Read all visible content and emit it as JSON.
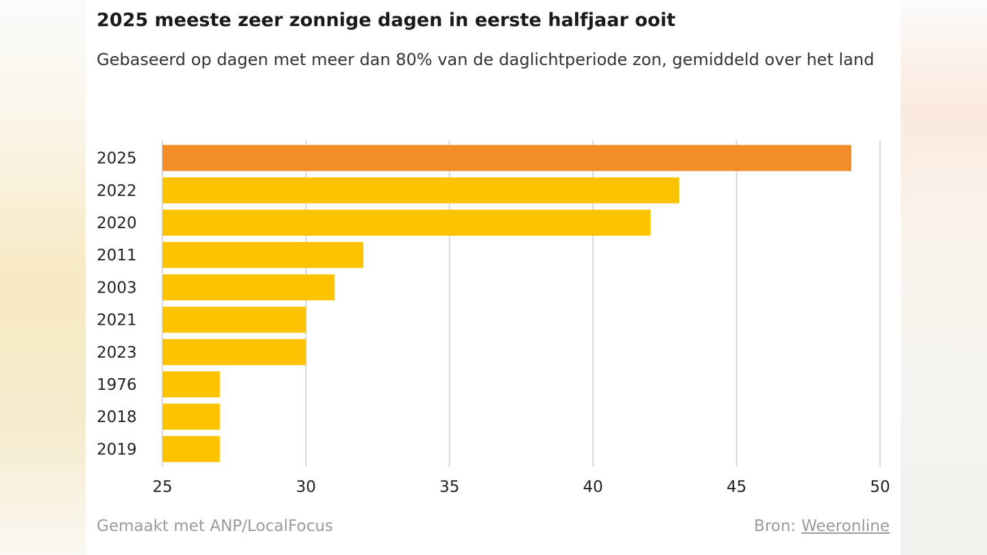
{
  "chart_data": {
    "type": "bar",
    "orientation": "horizontal",
    "title": "2025 meeste zeer zonnige dagen in eerste halfjaar ooit",
    "subtitle": "Gebaseerd op dagen met meer dan 80% van de daglichtperiode zon, gemiddeld over het land",
    "categories": [
      "2025",
      "2022",
      "2020",
      "2011",
      "2003",
      "2021",
      "2023",
      "1976",
      "2018",
      "2019"
    ],
    "values": [
      49,
      43,
      42,
      32,
      31,
      30,
      30,
      27,
      27,
      27
    ],
    "xlim": [
      25,
      50
    ],
    "xticks": [
      25,
      30,
      35,
      40,
      45,
      50
    ],
    "grid": true,
    "colors": {
      "highlight": "#f28c28",
      "default": "#fdc300",
      "grid": "#d9d9d9"
    },
    "highlight_category": "2025"
  },
  "footer": {
    "credit": "Gemaakt met ANP/LocalFocus",
    "source_label": "Bron:",
    "source_link": "Weeronline"
  }
}
